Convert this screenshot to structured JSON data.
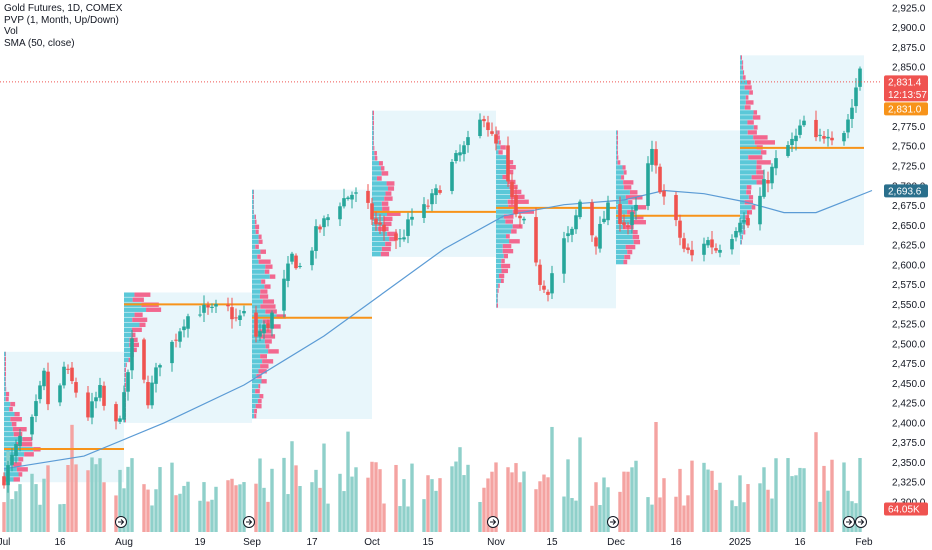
{
  "legend": {
    "title": "Gold Futures, 1D, COMEX",
    "line2": "PVP (1, Month, Up/Down)",
    "line3": "Vol",
    "line4": "SMA (50, close)"
  },
  "colors": {
    "up": "#26a69a",
    "down": "#ef5350",
    "vol_up": "#8fd0ca",
    "vol_down": "#f4a3a1",
    "sma": "#5b9bd5",
    "poc": "#f7931a",
    "profile_bg": "#e8f6fb",
    "profile_up": "#5bc8d8",
    "profile_down": "#f2678f",
    "price_tag": "#ef5350",
    "sma_tag": "#2a6f8c",
    "vol_tag": "#ef5350",
    "countdown_tag": "#f7931a"
  },
  "tags": {
    "price": "2,831.4",
    "countdown": "12:13:57",
    "second_price": "2,831.0",
    "sma": "2,693.6",
    "volume": "64.05K"
  },
  "chart_data": {
    "type": "candlestick",
    "title": "Gold Futures, 1D, COMEX",
    "ylim": [
      2262,
      2935
    ],
    "yticks": [
      2300,
      2325,
      2350,
      2375,
      2400,
      2425,
      2450,
      2475,
      2500,
      2525,
      2550,
      2575,
      2600,
      2625,
      2650,
      2675,
      2700,
      2725,
      2750,
      2775,
      2800,
      2825,
      2850,
      2875,
      2900,
      2925
    ],
    "ytick_labels": [
      "2,300.0",
      "2,325.0",
      "2,350.0",
      "2,375.0",
      "2,400.0",
      "2,425.0",
      "2,450.0",
      "2,475.0",
      "2,500.0",
      "2,525.0",
      "2,550.0",
      "2,575.0",
      "2,600.0",
      "2,625.0",
      "2,650.0",
      "2,675.0",
      "2,700.0",
      "2,725.0",
      "2,750.0",
      "2,775.0",
      "2,800.0",
      "2,825.0",
      "2,850.0",
      "2,875.0",
      "2,900.0",
      "2,925.0"
    ],
    "x_labels": [
      {
        "label": "Jul",
        "day": 0
      },
      {
        "label": "16",
        "day": 14
      },
      {
        "label": "Aug",
        "day": 30
      },
      {
        "label": "19",
        "day": 49
      },
      {
        "label": "Sep",
        "day": 62
      },
      {
        "label": "17",
        "day": 77
      },
      {
        "label": "Oct",
        "day": 92
      },
      {
        "label": "15",
        "day": 106
      },
      {
        "label": "Nov",
        "day": 123
      },
      {
        "label": "15",
        "day": 137
      },
      {
        "label": "Dec",
        "day": 153
      },
      {
        "label": "16",
        "day": 168
      },
      {
        "label": "2025",
        "day": 184
      },
      {
        "label": "16",
        "day": 199
      },
      {
        "label": "Feb",
        "day": 215
      }
    ],
    "last_price": 2831.4,
    "last_sma": 2693.6,
    "last_volume": "64.05K",
    "poc_levels": [
      {
        "start_day": 0,
        "end_day": 30,
        "price": 2367
      },
      {
        "start_day": 30,
        "end_day": 62,
        "price": 2550
      },
      {
        "start_day": 62,
        "end_day": 92,
        "price": 2533
      },
      {
        "start_day": 92,
        "end_day": 123,
        "price": 2667
      },
      {
        "start_day": 123,
        "end_day": 153,
        "price": 2672
      },
      {
        "start_day": 153,
        "end_day": 184,
        "price": 2662
      },
      {
        "start_day": 184,
        "end_day": 215,
        "price": 2748
      }
    ],
    "profile_ranges": [
      {
        "start_day": 0,
        "end_day": 30,
        "low": 2325,
        "high": 2490
      },
      {
        "start_day": 30,
        "end_day": 62,
        "low": 2400,
        "high": 2565
      },
      {
        "start_day": 62,
        "end_day": 92,
        "low": 2405,
        "high": 2695
      },
      {
        "start_day": 92,
        "end_day": 123,
        "low": 2610,
        "high": 2795
      },
      {
        "start_day": 123,
        "end_day": 153,
        "low": 2545,
        "high": 2770
      },
      {
        "start_day": 153,
        "end_day": 184,
        "low": 2600,
        "high": 2770
      },
      {
        "start_day": 184,
        "end_day": 215,
        "low": 2625,
        "high": 2865
      }
    ],
    "sma_points": [
      {
        "day": 0,
        "value": 2342
      },
      {
        "day": 20,
        "value": 2358
      },
      {
        "day": 40,
        "value": 2400
      },
      {
        "day": 60,
        "value": 2448
      },
      {
        "day": 80,
        "value": 2510
      },
      {
        "day": 95,
        "value": 2565
      },
      {
        "day": 110,
        "value": 2620
      },
      {
        "day": 125,
        "value": 2662
      },
      {
        "day": 140,
        "value": 2676
      },
      {
        "day": 155,
        "value": 2682
      },
      {
        "day": 165,
        "value": 2694
      },
      {
        "day": 175,
        "value": 2690
      },
      {
        "day": 185,
        "value": 2680
      },
      {
        "day": 195,
        "value": 2666
      },
      {
        "day": 203,
        "value": 2666
      },
      {
        "day": 212,
        "value": 2684
      },
      {
        "day": 217,
        "value": 2694
      }
    ],
    "path": [
      {
        "day": 0,
        "price": 2330
      },
      {
        "day": 4,
        "price": 2380
      },
      {
        "day": 7,
        "price": 2400
      },
      {
        "day": 10,
        "price": 2460
      },
      {
        "day": 12,
        "price": 2390
      },
      {
        "day": 15,
        "price": 2470
      },
      {
        "day": 18,
        "price": 2440
      },
      {
        "day": 21,
        "price": 2410
      },
      {
        "day": 24,
        "price": 2440
      },
      {
        "day": 27,
        "price": 2380
      },
      {
        "day": 30,
        "price": 2430
      },
      {
        "day": 32,
        "price": 2500
      },
      {
        "day": 34,
        "price": 2470
      },
      {
        "day": 36,
        "price": 2430
      },
      {
        "day": 39,
        "price": 2480
      },
      {
        "day": 42,
        "price": 2500
      },
      {
        "day": 45,
        "price": 2530
      },
      {
        "day": 48,
        "price": 2545
      },
      {
        "day": 52,
        "price": 2540
      },
      {
        "day": 55,
        "price": 2550
      },
      {
        "day": 58,
        "price": 2530
      },
      {
        "day": 61,
        "price": 2540
      },
      {
        "day": 63,
        "price": 2510
      },
      {
        "day": 66,
        "price": 2525
      },
      {
        "day": 69,
        "price": 2560
      },
      {
        "day": 72,
        "price": 2610
      },
      {
        "day": 75,
        "price": 2590
      },
      {
        "day": 78,
        "price": 2640
      },
      {
        "day": 81,
        "price": 2660
      },
      {
        "day": 84,
        "price": 2680
      },
      {
        "day": 87,
        "price": 2690
      },
      {
        "day": 90,
        "price": 2680
      },
      {
        "day": 93,
        "price": 2650
      },
      {
        "day": 96,
        "price": 2640
      },
      {
        "day": 99,
        "price": 2630
      },
      {
        "day": 102,
        "price": 2660
      },
      {
        "day": 105,
        "price": 2670
      },
      {
        "day": 108,
        "price": 2690
      },
      {
        "day": 111,
        "price": 2720
      },
      {
        "day": 114,
        "price": 2740
      },
      {
        "day": 117,
        "price": 2760
      },
      {
        "day": 120,
        "price": 2790
      },
      {
        "day": 122,
        "price": 2760
      },
      {
        "day": 124,
        "price": 2740
      },
      {
        "day": 126,
        "price": 2700
      },
      {
        "day": 128,
        "price": 2660
      },
      {
        "day": 130,
        "price": 2650
      },
      {
        "day": 132,
        "price": 2610
      },
      {
        "day": 134,
        "price": 2580
      },
      {
        "day": 136,
        "price": 2570
      },
      {
        "day": 138,
        "price": 2610
      },
      {
        "day": 140,
        "price": 2630
      },
      {
        "day": 142,
        "price": 2640
      },
      {
        "day": 144,
        "price": 2680
      },
      {
        "day": 146,
        "price": 2650
      },
      {
        "day": 148,
        "price": 2630
      },
      {
        "day": 150,
        "price": 2660
      },
      {
        "day": 152,
        "price": 2680
      },
      {
        "day": 154,
        "price": 2660
      },
      {
        "day": 156,
        "price": 2650
      },
      {
        "day": 158,
        "price": 2670
      },
      {
        "day": 160,
        "price": 2710
      },
      {
        "day": 162,
        "price": 2740
      },
      {
        "day": 164,
        "price": 2700
      },
      {
        "day": 166,
        "price": 2670
      },
      {
        "day": 168,
        "price": 2650
      },
      {
        "day": 170,
        "price": 2620
      },
      {
        "day": 172,
        "price": 2610
      },
      {
        "day": 174,
        "price": 2630
      },
      {
        "day": 176,
        "price": 2630
      },
      {
        "day": 178,
        "price": 2620
      },
      {
        "day": 180,
        "price": 2630
      },
      {
        "day": 182,
        "price": 2640
      },
      {
        "day": 184,
        "price": 2660
      },
      {
        "day": 186,
        "price": 2650
      },
      {
        "day": 188,
        "price": 2670
      },
      {
        "day": 190,
        "price": 2700
      },
      {
        "day": 192,
        "price": 2720
      },
      {
        "day": 194,
        "price": 2740
      },
      {
        "day": 196,
        "price": 2750
      },
      {
        "day": 198,
        "price": 2760
      },
      {
        "day": 200,
        "price": 2780
      },
      {
        "day": 202,
        "price": 2750
      },
      {
        "day": 204,
        "price": 2760
      },
      {
        "day": 206,
        "price": 2770
      },
      {
        "day": 208,
        "price": 2760
      },
      {
        "day": 210,
        "price": 2770
      },
      {
        "day": 212,
        "price": 2800
      },
      {
        "day": 214,
        "price": 2850
      },
      {
        "day": 215,
        "price": 2831
      }
    ]
  }
}
